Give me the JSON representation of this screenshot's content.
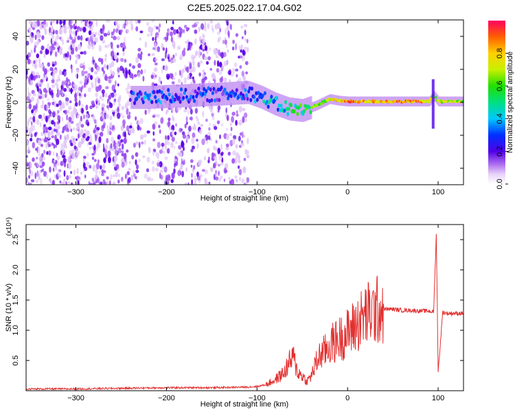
{
  "title": "C2E5.2025.022.17.04.G02",
  "colors": {
    "snr_line": "#e23030",
    "noise_light": "#e2c8f7",
    "noise_mid": "#9b4cf0",
    "noise_dark": "#5a00e6",
    "frame": "#000000"
  },
  "chart_data": [
    {
      "type": "heatmap",
      "xlabel": "Height of straight line (km)",
      "ylabel": "Frequency (Hz)",
      "xlim": [
        -355,
        128
      ],
      "ylim": [
        -50,
        50
      ],
      "xticks": [
        -300,
        -200,
        -100,
        0,
        100
      ],
      "yticks": [
        -40,
        -20,
        0,
        20,
        40
      ],
      "colorbar": {
        "label": "Normalized spectral amplitude",
        "range": [
          0.0,
          1.0
        ],
        "ticks": [
          0.0,
          0.2,
          0.4,
          0.6,
          0.8
        ],
        "colormap": "rainbow (white-violet-blue-cyan-green-yellow-orange-red)"
      },
      "features": {
        "noise_region_x": [
          -355,
          -110
        ],
        "signal_track_x": [
          -240,
          128
        ],
        "signal_track": [
          {
            "x": -240,
            "f": 3,
            "amp": 0.25
          },
          {
            "x": -220,
            "f": 3,
            "amp": 0.3
          },
          {
            "x": -140,
            "f": 5,
            "amp": 0.25
          },
          {
            "x": -110,
            "f": 6,
            "amp": 0.3
          },
          {
            "x": -95,
            "f": 3,
            "amp": 0.35
          },
          {
            "x": -80,
            "f": -1,
            "amp": 0.4
          },
          {
            "x": -65,
            "f": -4,
            "amp": 0.45
          },
          {
            "x": -50,
            "f": -5,
            "amp": 0.55
          },
          {
            "x": -35,
            "f": -2,
            "amp": 0.6
          },
          {
            "x": -20,
            "f": 2,
            "amp": 0.7
          },
          {
            "x": -10,
            "f": 1,
            "amp": 0.75
          },
          {
            "x": 0,
            "f": 0.5,
            "amp": 0.9
          },
          {
            "x": 20,
            "f": 0.5,
            "amp": 0.8
          },
          {
            "x": 60,
            "f": 0.5,
            "amp": 0.85
          },
          {
            "x": 90,
            "f": 0.5,
            "amp": 0.8
          },
          {
            "x": 95,
            "f": 4,
            "amp": 0.55
          },
          {
            "x": 100,
            "f": 0.5,
            "amp": 0.7
          },
          {
            "x": 128,
            "f": 0.5,
            "amp": 0.7
          }
        ]
      }
    },
    {
      "type": "line",
      "xlabel": "Height of straight line (km)",
      "ylabel": "SNR (10 * v/v)",
      "y_multiplier": "(x10⁴)",
      "xlim": [
        -355,
        128
      ],
      "ylim": [
        0,
        2.75
      ],
      "xticks": [
        -300,
        -200,
        -100,
        0,
        100
      ],
      "yticks": [
        0.5,
        1.0,
        1.5,
        2.0,
        2.5
      ],
      "series": [
        {
          "x": [
            -355,
            -300,
            -250,
            -200,
            -150,
            -110,
            -100,
            -90,
            -80,
            -70,
            -65,
            -60,
            -55,
            -50,
            -45,
            -40,
            -35,
            -30,
            -25,
            -20,
            -15,
            -10,
            -5,
            0,
            10,
            20,
            30,
            40,
            50,
            60,
            70,
            80,
            90,
            95,
            98,
            100,
            105,
            110,
            128
          ],
          "y": [
            0.03,
            0.03,
            0.04,
            0.05,
            0.05,
            0.06,
            0.07,
            0.1,
            0.18,
            0.3,
            0.45,
            0.55,
            0.3,
            0.25,
            0.15,
            0.25,
            0.45,
            0.6,
            0.65,
            0.75,
            0.8,
            0.85,
            0.9,
            0.95,
            1.1,
            1.25,
            1.32,
            1.35,
            1.35,
            1.33,
            1.33,
            1.32,
            1.32,
            1.3,
            2.6,
            0.3,
            1.3,
            1.28,
            1.28
          ]
        }
      ]
    }
  ]
}
